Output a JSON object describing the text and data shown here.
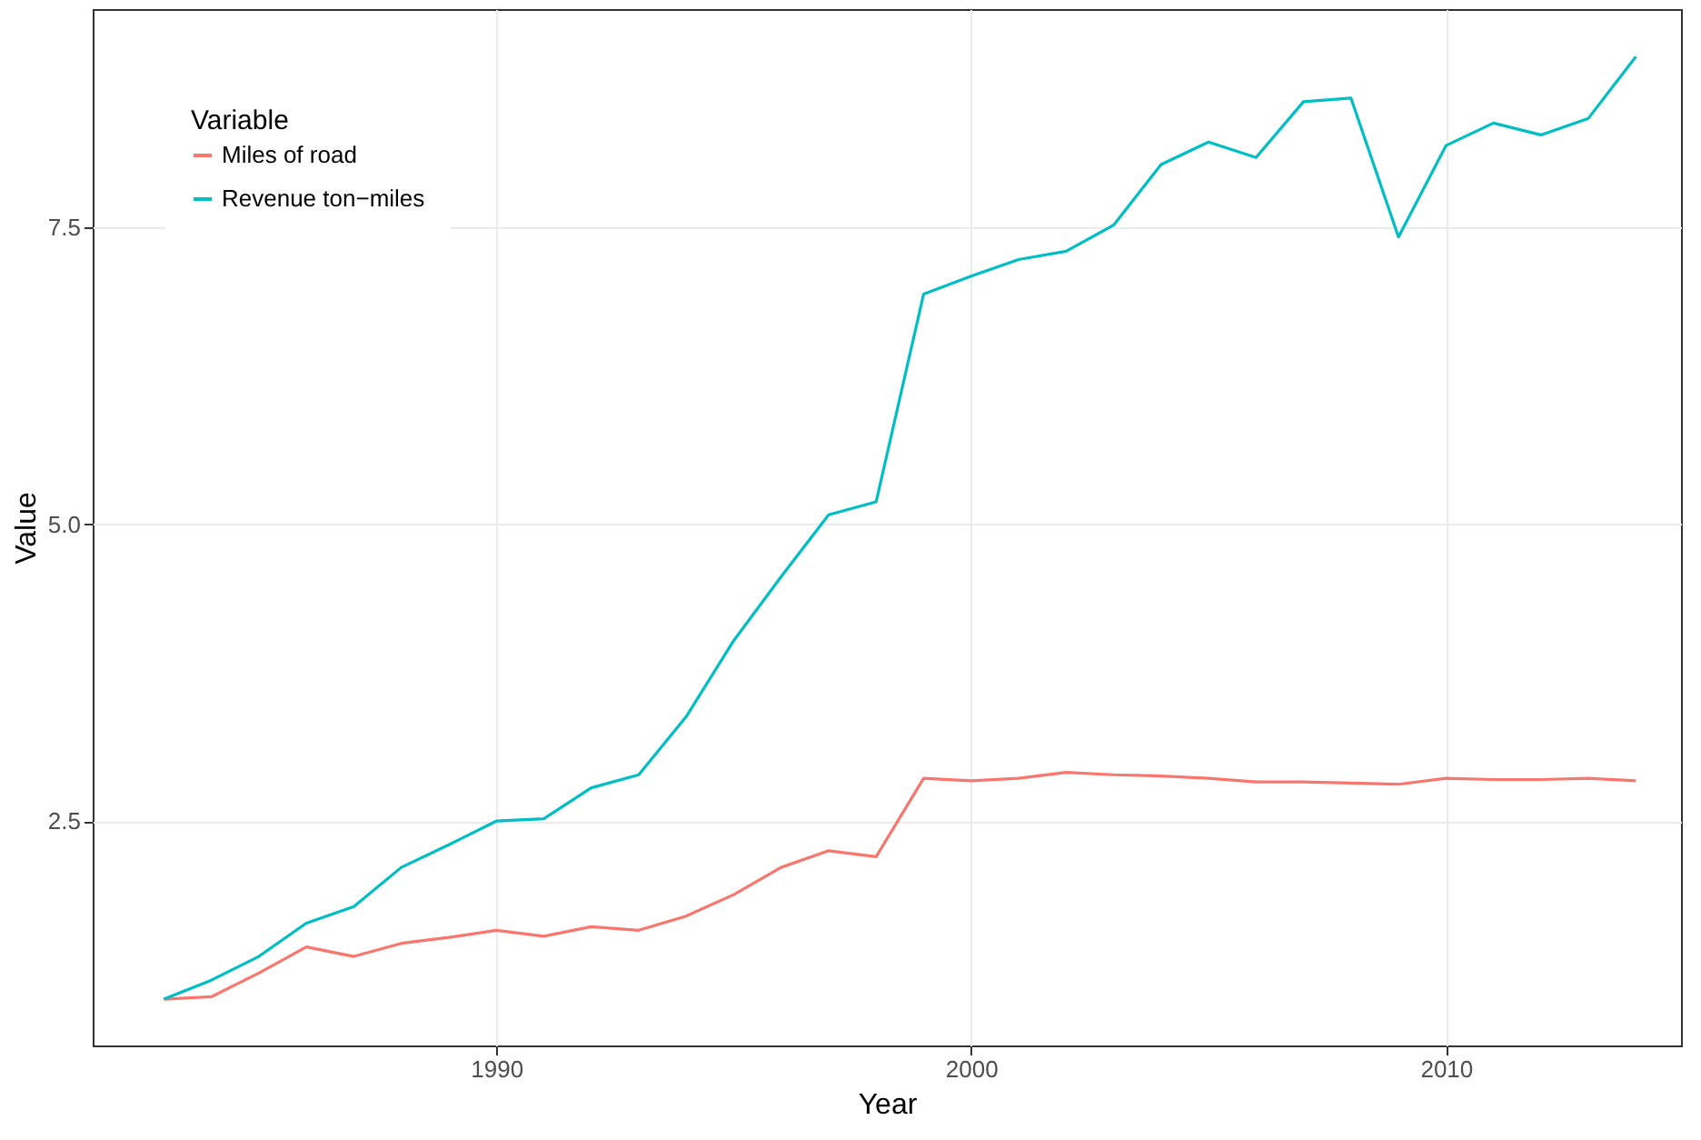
{
  "chart_data": {
    "type": "line",
    "xlabel": "Year",
    "ylabel": "Value",
    "legend_title": "Variable",
    "legend": "top left",
    "grid": true,
    "x": [
      1983,
      1984,
      1985,
      1986,
      1987,
      1988,
      1989,
      1990,
      1991,
      1992,
      1993,
      1994,
      1995,
      1996,
      1997,
      1998,
      1999,
      2000,
      2001,
      2002,
      2003,
      2004,
      2005,
      2006,
      2007,
      2008,
      2009,
      2010,
      2011,
      2012,
      2013,
      2014
    ],
    "series": [
      {
        "name": "Miles of road",
        "color": "#f8766d",
        "values": [
          1.0,
          1.02,
          1.22,
          1.44,
          1.36,
          1.47,
          1.52,
          1.58,
          1.53,
          1.61,
          1.58,
          1.7,
          1.88,
          2.11,
          2.25,
          2.2,
          2.86,
          2.84,
          2.86,
          2.91,
          2.89,
          2.88,
          2.86,
          2.83,
          2.83,
          2.82,
          2.81,
          2.86,
          2.85,
          2.85,
          2.86,
          2.84
        ]
      },
      {
        "name": "Revenue ton−miles",
        "color": "#00bfc4",
        "values": [
          1.0,
          1.16,
          1.36,
          1.64,
          1.78,
          2.11,
          2.3,
          2.5,
          2.52,
          2.78,
          2.89,
          3.38,
          4.02,
          4.56,
          5.08,
          5.19,
          6.94,
          7.09,
          7.23,
          7.3,
          7.52,
          8.03,
          8.22,
          8.09,
          8.56,
          8.59,
          7.42,
          8.19,
          8.38,
          8.28,
          8.42,
          8.94
        ]
      }
    ],
    "xlim": [
      1981.5,
      2014.95
    ],
    "xticks": [
      1990,
      2000,
      2010
    ],
    "ylim": [
      0.61,
      9.34
    ],
    "yticks": [
      {
        "value": 2.5,
        "label": "2.5"
      },
      {
        "value": 5,
        "label": "5.0"
      },
      {
        "value": 7.5,
        "label": "7.5"
      }
    ]
  }
}
